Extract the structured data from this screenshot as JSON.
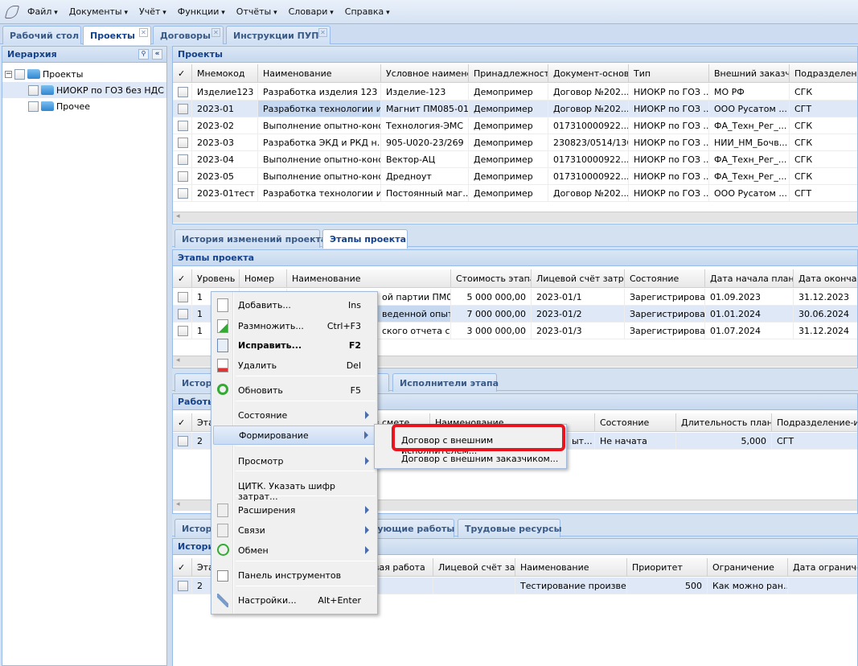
{
  "menu": [
    "Файл",
    "Документы",
    "Учёт",
    "Функции",
    "Отчёты",
    "Словари",
    "Справка"
  ],
  "tabs": [
    "Рабочий стол",
    "Проекты",
    "Договоры",
    "Инструкции ПУП"
  ],
  "hierarchy": {
    "title": "Иерархия",
    "root": "Проекты",
    "children": [
      "НИОКР по ГОЗ без НДС",
      "Прочее"
    ]
  },
  "projects": {
    "title": "Проекты",
    "headers": [
      "✓",
      "Мнемокод",
      "Наименование",
      "Условное наименова",
      "Принадлежность",
      "Документ-основан",
      "Тип",
      "Внешний заказчик",
      "Подразделение"
    ],
    "rows": [
      [
        "",
        "Изделие123",
        "Разработка изделия 123",
        "Изделие-123",
        "Демопример",
        "Договор №202...",
        "НИОКР по ГОЗ ...",
        "МО РФ",
        "СГК"
      ],
      [
        "",
        "2023-01",
        "Разработка технологии и...",
        "Магнит ПМ085-01",
        "Демопример",
        "Договор №202...",
        "НИОКР по ГОЗ ...",
        "ООО Русатом ...",
        "СГТ"
      ],
      [
        "",
        "2023-02",
        "Выполнение опытно-конс...",
        "Технология-ЭМС",
        "Демопример",
        "017310000922...",
        "НИОКР по ГОЗ ...",
        "ФА_Техн_Рег_...",
        "СГК"
      ],
      [
        "",
        "2023-03",
        "Разработка ЭКД и РКД н...",
        "905-U020-23/269",
        "Демопример",
        "230823/0514/136",
        "НИОКР по ГОЗ ...",
        "НИИ_НМ_Бочв...",
        "СГК"
      ],
      [
        "",
        "2023-04",
        "Выполнение опытно-конс...",
        "Вектор-АЦ",
        "Демопример",
        "017310000922...",
        "НИОКР по ГОЗ ...",
        "ФА_Техн_Рег_...",
        "СГК"
      ],
      [
        "",
        "2023-05",
        "Выполнение опытно-конс...",
        "Дредноут",
        "Демопример",
        "017310000922...",
        "НИОКР по ГОЗ ...",
        "ФА_Техн_Рег_...",
        "СГК"
      ],
      [
        "",
        "2023-01тест",
        "Разработка технологии и...",
        "Постоянный маг...",
        "Демопример",
        "Договор №202...",
        "НИОКР по ГОЗ ...",
        "ООО Русатом ...",
        "СГТ"
      ]
    ]
  },
  "tabs2": [
    "История изменений проекта",
    "Этапы проекта"
  ],
  "stages": {
    "title": "Этапы проекта",
    "headers": [
      "✓",
      "Уровень",
      "Номер",
      "Наименование",
      "Стоимость этапа",
      "Лицевой счёт затрат.",
      "Состояние",
      "Дата начала план",
      "Дата окончания"
    ],
    "rows": [
      [
        "",
        "1",
        "",
        "ой партии ПМ0...",
        "5 000 000,00",
        "2023-01/1",
        "Зарегистрирован",
        "01.09.2023",
        "31.12.2023"
      ],
      [
        "",
        "1",
        "",
        "веденной опыт...",
        "7 000 000,00",
        "2023-01/2",
        "Зарегистрирован",
        "01.01.2024",
        "30.06.2024"
      ],
      [
        "",
        "1",
        "",
        "ского отчета с ...",
        "3 000 000,00",
        "2023-01/3",
        "Зарегистрирован",
        "01.07.2024",
        "31.12.2024"
      ]
    ]
  },
  "tabs3": [
    "Истор",
    "а",
    "Исполнители этапа"
  ],
  "works": {
    "title": "Работы",
    "headers": [
      "✓",
      "Эта",
      "",
      "в смете",
      "Наименование",
      "Состояние",
      "Длительность план",
      "Подразделение-испо"
    ],
    "rows": [
      [
        "",
        "2",
        "",
        "",
        "ыт...",
        "Не начата",
        "5,000",
        "СГТ"
      ]
    ]
  },
  "tabs4": [
    "Истор",
    "зующие работы",
    "Трудовые ресурсы"
  ],
  "history": {
    "title": "Истори",
    "headers": [
      "✓",
      "Эта",
      "",
      "вая работа",
      "Лицевой счёт затр",
      "Наименование",
      "Приоритет",
      "Ограничение",
      "Дата ограничения"
    ],
    "rows": [
      [
        "",
        "2",
        "",
        "",
        "",
        "Тестирование произве...",
        "500",
        "Как можно ран...",
        ""
      ]
    ]
  },
  "context_menu": [
    {
      "label": "Добавить...",
      "shortcut": "Ins",
      "icon": "document-icon"
    },
    {
      "label": "Размножить...",
      "shortcut": "Ctrl+F3",
      "icon": "document-add-icon"
    },
    {
      "label": "Исправить...",
      "shortcut": "F2",
      "icon": "edit-icon",
      "bold": true
    },
    {
      "label": "Удалить",
      "shortcut": "Del",
      "icon": "document-delete-icon"
    },
    {
      "label": "Обновить",
      "shortcut": "F5",
      "icon": "refresh-icon"
    },
    {
      "label": "Состояние",
      "submenu": true
    },
    {
      "label": "Формирование",
      "submenu": true,
      "highlighted": true
    },
    {
      "label": "Просмотр",
      "submenu": true
    },
    {
      "label": "ЦИТК. Указать шифр затрат..."
    },
    {
      "label": "Расширения",
      "submenu": true,
      "icon": "gear-icon"
    },
    {
      "label": "Связи",
      "submenu": true,
      "icon": "link-icon"
    },
    {
      "label": "Обмен",
      "submenu": true,
      "icon": "exchange-icon"
    },
    {
      "label": "Панель инструментов",
      "icon": "checkbox-icon"
    },
    {
      "label": "Настройки...",
      "shortcut": "Alt+Enter",
      "icon": "wrench-icon"
    }
  ],
  "submenu": [
    "Договор с внешним исполнителем...",
    "Договор с внешним заказчиком..."
  ],
  "colors": {
    "accent": "#15428b",
    "selection": "#dfe8f6",
    "highlight_box": "#e8141e"
  }
}
